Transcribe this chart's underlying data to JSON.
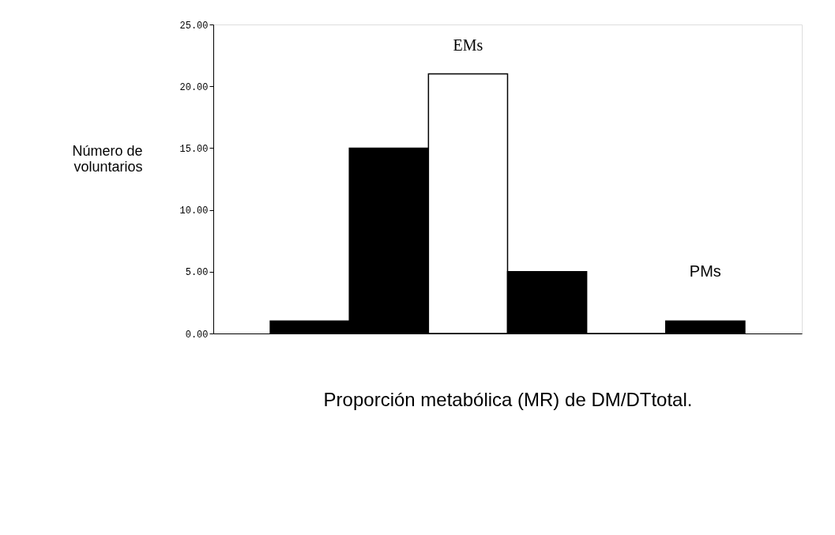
{
  "chart_data": {
    "type": "bar",
    "xlabel": "Proporción metabólica (MR) de DM/DTtotal.",
    "ylabel": "Número de voluntarios",
    "categories": [
      null,
      null,
      null,
      null,
      null,
      null
    ],
    "values": [
      1,
      15,
      21,
      5,
      0,
      1
    ],
    "colors": [
      "#000000",
      "#000000",
      "#ffffff",
      "#000000",
      "#000000",
      "#000000"
    ],
    "ylim": [
      0,
      25
    ],
    "yticks": [
      {
        "value": 0,
        "label": "0.00"
      },
      {
        "value": 5,
        "label": "5.00"
      },
      {
        "value": 10,
        "label": "10.00"
      },
      {
        "value": 15,
        "label": "15.00"
      },
      {
        "value": 20,
        "label": "20.00"
      },
      {
        "value": 25,
        "label": "25.00"
      }
    ],
    "annotations": [
      "EMs",
      "PMs"
    ],
    "grid": false,
    "legend": false
  }
}
